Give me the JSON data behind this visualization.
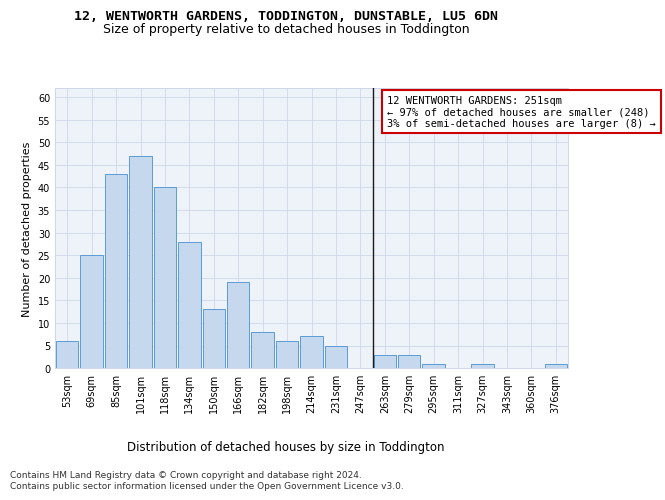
{
  "title": "12, WENTWORTH GARDENS, TODDINGTON, DUNSTABLE, LU5 6DN",
  "subtitle": "Size of property relative to detached houses in Toddington",
  "xlabel": "Distribution of detached houses by size in Toddington",
  "ylabel": "Number of detached properties",
  "bin_labels": [
    "53sqm",
    "69sqm",
    "85sqm",
    "101sqm",
    "118sqm",
    "134sqm",
    "150sqm",
    "166sqm",
    "182sqm",
    "198sqm",
    "214sqm",
    "231sqm",
    "247sqm",
    "263sqm",
    "279sqm",
    "295sqm",
    "311sqm",
    "327sqm",
    "343sqm",
    "360sqm",
    "376sqm"
  ],
  "bar_values": [
    6,
    25,
    43,
    47,
    40,
    28,
    13,
    19,
    8,
    6,
    7,
    5,
    0,
    3,
    3,
    1,
    0,
    1,
    0,
    0,
    1
  ],
  "bar_color": "#c5d8ed",
  "bar_edge_color": "#5b9bd5",
  "vline_color": "#1a1a1a",
  "ylim": [
    0,
    62
  ],
  "yticks": [
    0,
    5,
    10,
    15,
    20,
    25,
    30,
    35,
    40,
    45,
    50,
    55,
    60
  ],
  "annotation_text": "12 WENTWORTH GARDENS: 251sqm\n← 97% of detached houses are smaller (248)\n3% of semi-detached houses are larger (8) →",
  "annotation_box_color": "#ffffff",
  "annotation_border_color": "#cc0000",
  "grid_color": "#d0d8e8",
  "bg_color": "#eef2f9",
  "footer_text": "Contains HM Land Registry data © Crown copyright and database right 2024.\nContains public sector information licensed under the Open Government Licence v3.0.",
  "title_fontsize": 9.5,
  "subtitle_fontsize": 9,
  "xlabel_fontsize": 8.5,
  "ylabel_fontsize": 8,
  "tick_fontsize": 7,
  "annotation_fontsize": 7.5,
  "footer_fontsize": 6.5
}
